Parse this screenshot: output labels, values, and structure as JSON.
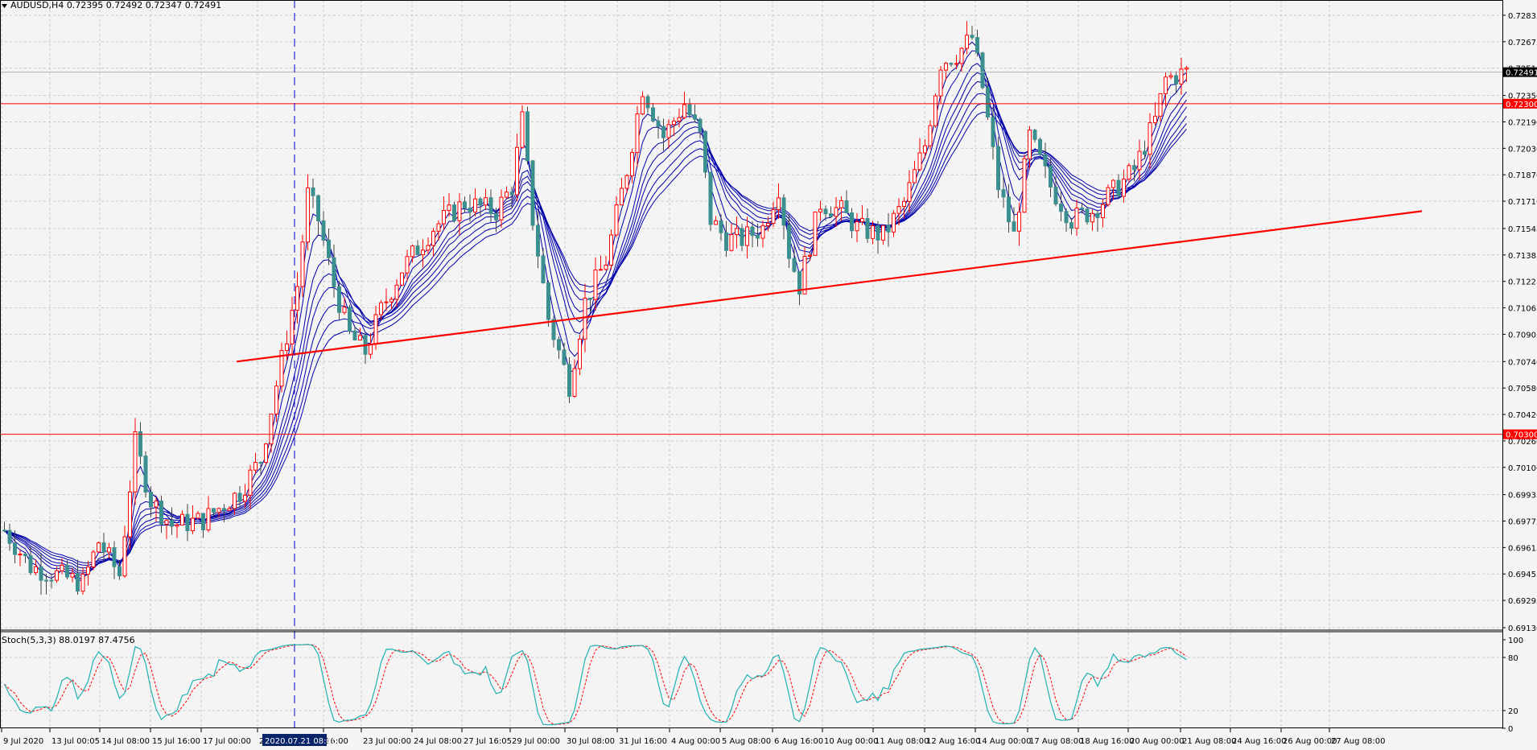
{
  "header": {
    "title": "AUDUSD,H4  0.72395 0.72492 0.72347 0.72491",
    "stoch_label": "Stoch(5,3,3) 88.0197 87.4756"
  },
  "chart_data": [
    {
      "type": "candlestick",
      "symbol": "AUDUSD",
      "timeframe": "H4",
      "ohlc_last": {
        "open": 0.72395,
        "high": 0.72492,
        "low": 0.72347,
        "close": 0.72491
      },
      "ylim": [
        0.6913,
        0.7283
      ],
      "y_ticks": [
        "0.72835",
        "0.72675",
        "0.72515",
        "0.72350",
        "0.72190",
        "0.72030",
        "0.71870",
        "0.71710",
        "0.71545",
        "0.71385",
        "0.71225",
        "0.71065",
        "0.70905",
        "0.70740",
        "0.70580",
        "0.70420",
        "0.70260",
        "0.70100",
        "0.69935",
        "0.69775",
        "0.69615",
        "0.69455",
        "0.69295",
        "0.69130"
      ],
      "x_ticks": [
        "9 Jul 2020",
        "13 Jul 00:05",
        "14 Jul 08:00",
        "15 Jul 16:00",
        "17 Jul 00:00",
        "20",
        "16:00",
        "23 Jul 00:00",
        "24 Jul 08:00",
        "27 Jul 16:05",
        "29 Jul 00:00",
        "30 Jul 08:00",
        "31 Jul 16:00",
        "4 Aug 00:00",
        "5 Aug 08:00",
        "6 Aug 16:00",
        "10 Aug 00:00",
        "11 Aug 08:00",
        "12 Aug 16:00",
        "14 Aug 00:00",
        "17 Aug 08:00",
        "18 Aug 16:00",
        "20 Aug 00:00",
        "21 Aug 08:00",
        "24 Aug 16:00",
        "26 Aug 00:00",
        "27 Aug 08:00"
      ],
      "highlighted_x_label": "2020.07.21 08:00",
      "current_price": "0.72491",
      "horizontal_levels": [
        {
          "value": 0.723,
          "label": "0.72300",
          "color": "#ff0000"
        },
        {
          "value": 0.703,
          "label": "0.70300",
          "color": "#ff0000"
        }
      ],
      "trendline": {
        "from": {
          "bar": 0,
          "price": 0.7074
        },
        "to": {
          "bar": 0,
          "price": 0.7165
        },
        "color": "#ff0000"
      },
      "bull_color": "#ff0000",
      "bear_color": "#3b8f8f",
      "ma_color": "#0000aa",
      "ma_count": 8,
      "n_bars": 255,
      "path_points": [
        [
          0,
          0.6972
        ],
        [
          5,
          0.695
        ],
        [
          15,
          0.694
        ],
        [
          18,
          0.6965
        ],
        [
          22,
          0.6945
        ],
        [
          25,
          0.7025
        ],
        [
          28,
          0.699
        ],
        [
          32,
          0.6975
        ],
        [
          38,
          0.6978
        ],
        [
          45,
          0.6995
        ],
        [
          49,
          0.7015
        ],
        [
          52,
          0.706
        ],
        [
          56,
          0.712
        ],
        [
          58,
          0.7175
        ],
        [
          60,
          0.716
        ],
        [
          63,
          0.712
        ],
        [
          66,
          0.709
        ],
        [
          69,
          0.708
        ],
        [
          72,
          0.7105
        ],
        [
          76,
          0.713
        ],
        [
          82,
          0.7155
        ],
        [
          88,
          0.717
        ],
        [
          94,
          0.7165
        ],
        [
          97,
          0.718
        ],
        [
          99,
          0.722
        ],
        [
          101,
          0.716
        ],
        [
          104,
          0.71
        ],
        [
          108,
          0.706
        ],
        [
          111,
          0.711
        ],
        [
          115,
          0.7135
        ],
        [
          119,
          0.719
        ],
        [
          122,
          0.724
        ],
        [
          126,
          0.721
        ],
        [
          130,
          0.723
        ],
        [
          133,
          0.721
        ],
        [
          135,
          0.716
        ],
        [
          138,
          0.7148
        ],
        [
          141,
          0.7148
        ],
        [
          145,
          0.7155
        ],
        [
          148,
          0.718
        ],
        [
          150,
          0.714
        ],
        [
          152,
          0.712
        ],
        [
          156,
          0.717
        ],
        [
          160,
          0.7165
        ],
        [
          163,
          0.7155
        ],
        [
          168,
          0.715
        ],
        [
          172,
          0.717
        ],
        [
          176,
          0.7205
        ],
        [
          179,
          0.7255
        ],
        [
          182,
          0.726
        ],
        [
          185,
          0.727
        ],
        [
          187,
          0.724
        ],
        [
          190,
          0.718
        ],
        [
          193,
          0.715
        ],
        [
          196,
          0.721
        ],
        [
          200,
          0.718
        ],
        [
          204,
          0.716
        ],
        [
          208,
          0.7165
        ],
        [
          213,
          0.718
        ],
        [
          216,
          0.719
        ],
        [
          220,
          0.722
        ],
        [
          222,
          0.7245
        ],
        [
          226,
          0.7249
        ]
      ]
    },
    {
      "type": "line",
      "indicator": "Stochastic",
      "params": [
        5,
        3,
        3
      ],
      "values": {
        "main": 88.0197,
        "signal": 87.4756
      },
      "ylim": [
        0,
        100
      ],
      "y_ticks": [
        "100",
        "80",
        "20",
        "0"
      ],
      "levels": [
        80,
        20
      ],
      "main_color": "#20b0b0",
      "signal_color": "#ff0000",
      "x_ticks": [
        "9 Jul 2020",
        "13 Jul 00:05",
        "14 Jul 08:00",
        "15 Jul 16:00",
        "17 Jul 00:00",
        "20",
        "16:00",
        "23 Jul 00:00",
        "24 Jul 08:00",
        "27 Jul 16:05",
        "29 Jul 00:00",
        "30 Jul 08:00",
        "31 Jul 16:00",
        "4 Aug 00:00",
        "5 Aug 08:00",
        "6 Aug 16:00",
        "10 Aug 00:00",
        "11 Aug 08:00",
        "12 Aug 16:00",
        "14 Aug 00:00",
        "17 Aug 08:00",
        "18 Aug 16:00",
        "20 Aug 00:00",
        "21 Aug 08:00",
        "24 Aug 16:00",
        "26 Aug 00:00",
        "27 Aug 08:00"
      ]
    }
  ]
}
